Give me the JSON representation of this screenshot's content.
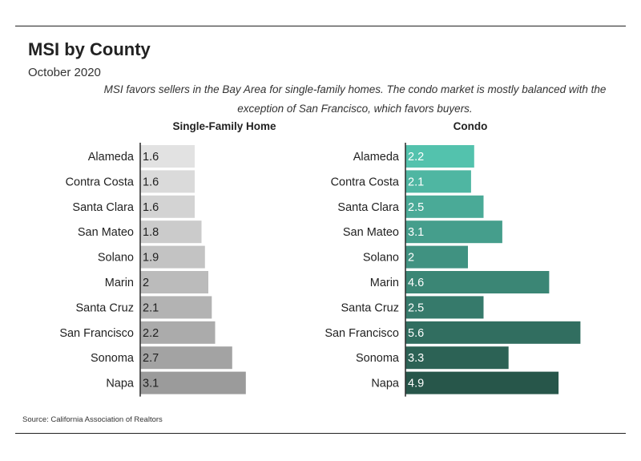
{
  "header": {
    "title": "MSI by County",
    "subtitle": "October 2020",
    "description": "MSI favors sellers in the Bay Area for single-family homes. The condo market is mostly balanced with the exception of San Francisco, which favors buyers."
  },
  "footer": {
    "source": "Source:  California Association of Realtors"
  },
  "chart_data": [
    {
      "type": "bar",
      "orientation": "horizontal",
      "title": "Single-Family Home",
      "categories": [
        "Alameda",
        "Contra Costa",
        "Santa Clara",
        "San Mateo",
        "Solano",
        "Marin",
        "Santa Cruz",
        "San Francisco",
        "Sonoma",
        "Napa"
      ],
      "values": [
        1.6,
        1.6,
        1.6,
        1.8,
        1.9,
        2,
        2.1,
        2.2,
        2.7,
        3.1
      ],
      "labels": [
        "1.6",
        "1.6",
        "1.6",
        "1.8",
        "1.9",
        "2",
        "2.1",
        "2.2",
        "2.7",
        "3.1"
      ],
      "xlim": [
        0,
        6
      ],
      "colors": [
        "#e2e2e2",
        "#dadada",
        "#d3d3d3",
        "#cbcbcb",
        "#c3c3c3",
        "#bbbbbb",
        "#b3b3b3",
        "#ababab",
        "#a3a3a3",
        "#9b9b9b"
      ],
      "label_color": "#222222",
      "grid": false
    },
    {
      "type": "bar",
      "orientation": "horizontal",
      "title": "Condo",
      "categories": [
        "Alameda",
        "Contra Costa",
        "Santa Clara",
        "San Mateo",
        "Solano",
        "Marin",
        "Santa Cruz",
        "San Francisco",
        "Sonoma",
        "Napa"
      ],
      "values": [
        2.2,
        2.1,
        2.5,
        3.1,
        2,
        4.6,
        2.5,
        5.6,
        3.3,
        4.9
      ],
      "labels": [
        "2.2",
        "2.1",
        "2.5",
        "3.1",
        "2",
        "4.6",
        "2.5",
        "5.6",
        "3.3",
        "4.9"
      ],
      "xlim": [
        0,
        6
      ],
      "colors": [
        "#53c2ad",
        "#4fb6a2",
        "#4aaa97",
        "#459e8c",
        "#409281",
        "#3b8675",
        "#367a6b",
        "#316e60",
        "#2c6255",
        "#27564a"
      ],
      "label_color": "#ffffff",
      "grid": false
    }
  ]
}
